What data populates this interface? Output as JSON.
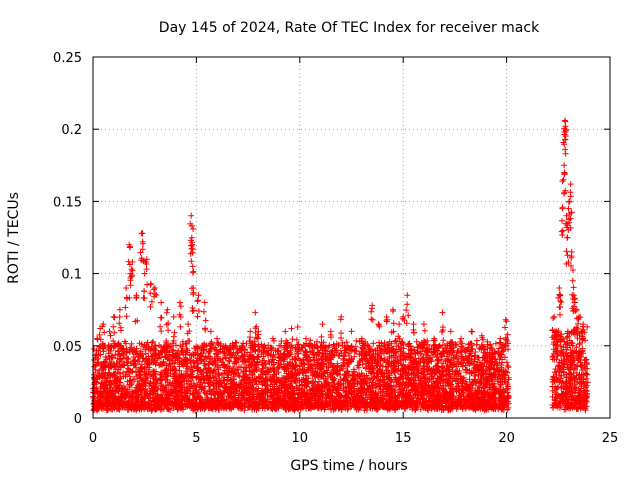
{
  "chart_data": {
    "type": "scatter",
    "title": "Day 145 of 2024, Rate Of TEC Index for receiver mack",
    "xlabel": "GPS time / hours",
    "ylabel": "ROTI / TECUs",
    "xlim": [
      0,
      25
    ],
    "ylim": [
      0,
      0.25
    ],
    "x_ticks": [
      0,
      5,
      10,
      15,
      20,
      25
    ],
    "y_ticks": [
      0,
      0.05,
      0.1,
      0.15,
      0.2,
      0.25
    ],
    "x_tick_labels": [
      "0",
      "5",
      "10",
      "15",
      "20",
      "25"
    ],
    "y_tick_labels": [
      "0",
      "0.05",
      "0.1",
      "0.15",
      "0.2",
      "0.25"
    ],
    "grid": true,
    "marker": "plus",
    "point_color": "#ff0000",
    "data_segments": [
      {
        "x_start": 0.0,
        "x_end": 20.1,
        "y_min": 0.005,
        "y_typical_max": 0.05
      },
      {
        "x_start": 22.2,
        "x_end": 23.9,
        "y_min": 0.005,
        "y_typical_max": 0.06
      }
    ],
    "series": [
      {
        "values": [
          [
            0.05,
            0.03
          ],
          [
            0.2,
            0.055
          ],
          [
            0.35,
            0.062
          ],
          [
            0.5,
            0.065
          ],
          [
            0.8,
            0.06
          ],
          [
            1.0,
            0.07
          ],
          [
            1.3,
            0.075
          ],
          [
            1.6,
            0.09
          ],
          [
            1.75,
            0.12
          ],
          [
            1.8,
            0.1
          ],
          [
            1.9,
            0.108
          ],
          [
            2.1,
            0.085
          ],
          [
            2.35,
            0.128
          ],
          [
            2.4,
            0.122
          ],
          [
            2.5,
            0.1
          ],
          [
            2.6,
            0.11
          ],
          [
            2.8,
            0.093
          ],
          [
            3.0,
            0.09
          ],
          [
            3.3,
            0.08
          ],
          [
            3.6,
            0.075
          ],
          [
            3.9,
            0.07
          ],
          [
            4.2,
            0.08
          ],
          [
            4.6,
            0.065
          ],
          [
            4.75,
            0.14
          ],
          [
            4.78,
            0.133
          ],
          [
            4.8,
            0.12
          ],
          [
            4.82,
            0.105
          ],
          [
            4.85,
            0.09
          ],
          [
            5.1,
            0.085
          ],
          [
            5.4,
            0.08
          ],
          [
            5.7,
            0.06
          ],
          [
            6.0,
            0.055
          ],
          [
            6.4,
            0.05
          ],
          [
            6.8,
            0.045
          ],
          [
            7.2,
            0.05
          ],
          [
            7.6,
            0.06
          ],
          [
            7.85,
            0.073
          ],
          [
            8.0,
            0.06
          ],
          [
            8.3,
            0.05
          ],
          [
            8.7,
            0.055
          ],
          [
            9.0,
            0.05
          ],
          [
            9.3,
            0.06
          ],
          [
            9.6,
            0.062
          ],
          [
            9.9,
            0.063
          ],
          [
            10.3,
            0.055
          ],
          [
            10.8,
            0.05
          ],
          [
            11.1,
            0.065
          ],
          [
            11.5,
            0.06
          ],
          [
            12.0,
            0.07
          ],
          [
            12.5,
            0.06
          ],
          [
            13.0,
            0.055
          ],
          [
            13.5,
            0.078
          ],
          [
            13.8,
            0.065
          ],
          [
            14.2,
            0.07
          ],
          [
            14.5,
            0.075
          ],
          [
            14.8,
            0.065
          ],
          [
            15.0,
            0.07
          ],
          [
            15.2,
            0.085
          ],
          [
            15.5,
            0.065
          ],
          [
            16.0,
            0.065
          ],
          [
            16.5,
            0.055
          ],
          [
            16.9,
            0.073
          ],
          [
            17.3,
            0.06
          ],
          [
            17.8,
            0.055
          ],
          [
            18.3,
            0.06
          ],
          [
            18.8,
            0.057
          ],
          [
            19.2,
            0.05
          ],
          [
            19.7,
            0.055
          ],
          [
            19.95,
            0.068
          ],
          [
            20.0,
            0.067
          ],
          [
            22.3,
            0.07
          ],
          [
            22.4,
            0.06
          ],
          [
            22.55,
            0.09
          ],
          [
            22.6,
            0.085
          ],
          [
            22.7,
            0.145
          ],
          [
            22.75,
            0.165
          ],
          [
            22.78,
            0.175
          ],
          [
            22.8,
            0.198
          ],
          [
            22.82,
            0.206
          ],
          [
            22.85,
            0.202
          ],
          [
            22.9,
            0.14
          ],
          [
            22.95,
            0.125
          ],
          [
            23.0,
            0.145
          ],
          [
            23.05,
            0.15
          ],
          [
            23.1,
            0.162
          ],
          [
            23.15,
            0.115
          ],
          [
            23.2,
            0.095
          ],
          [
            23.25,
            0.085
          ],
          [
            23.3,
            0.08
          ],
          [
            23.4,
            0.075
          ],
          [
            23.5,
            0.07
          ],
          [
            23.6,
            0.06
          ],
          [
            23.7,
            0.065
          ],
          [
            23.8,
            0.04
          ],
          [
            23.9,
            0.03
          ]
        ]
      }
    ]
  }
}
